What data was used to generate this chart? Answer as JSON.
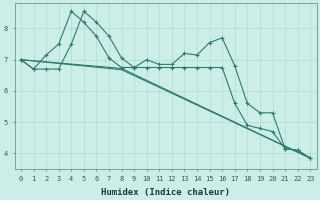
{
  "xlabel": "Humidex (Indice chaleur)",
  "background_color": "#cceee8",
  "grid_color": "#b8ddd8",
  "line_color": "#2e7b6e",
  "xlim": [
    -0.5,
    23.5
  ],
  "ylim": [
    3.5,
    8.8
  ],
  "yticks": [
    4,
    5,
    6,
    7,
    8
  ],
  "xticks": [
    0,
    1,
    2,
    3,
    4,
    5,
    6,
    7,
    8,
    9,
    10,
    11,
    12,
    13,
    14,
    15,
    16,
    17,
    18,
    19,
    20,
    21,
    22,
    23
  ],
  "line1_x": [
    0,
    1,
    2,
    3,
    4,
    5,
    6,
    7,
    8,
    9,
    10,
    11,
    12,
    13,
    14,
    15,
    16,
    17,
    18,
    19,
    20,
    21,
    22,
    23
  ],
  "line1_y": [
    7.0,
    6.7,
    7.15,
    7.5,
    8.55,
    8.2,
    7.75,
    7.05,
    6.75,
    6.75,
    7.0,
    6.85,
    6.85,
    7.2,
    7.15,
    7.55,
    7.7,
    6.8,
    5.6,
    5.3,
    5.3,
    4.15,
    4.1,
    3.85
  ],
  "line2_x": [
    0,
    1,
    2,
    3,
    4,
    5,
    6,
    7,
    8,
    9,
    10,
    11,
    12,
    13,
    14,
    15,
    16,
    17,
    18,
    19,
    20,
    21,
    22,
    23
  ],
  "line2_y": [
    7.0,
    6.7,
    6.7,
    6.7,
    7.5,
    8.55,
    8.2,
    7.75,
    7.05,
    6.75,
    6.75,
    6.75,
    6.75,
    6.75,
    6.75,
    6.75,
    6.75,
    5.6,
    4.9,
    4.8,
    4.7,
    4.15,
    4.1,
    3.85
  ],
  "line3_x": [
    0,
    8,
    23
  ],
  "line3_y": [
    7.0,
    6.72,
    3.85
  ],
  "line4_x": [
    0,
    8,
    23
  ],
  "line4_y": [
    7.0,
    6.68,
    3.85
  ]
}
